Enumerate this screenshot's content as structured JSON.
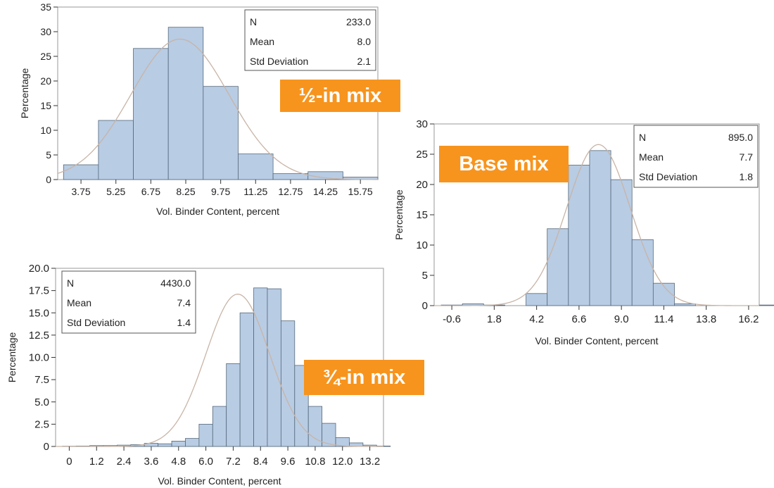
{
  "colors": {
    "bar_fill": "#b8cce4",
    "bar_stroke": "#55687a",
    "curve": "#c8b4a6",
    "tag_bg": "#f7941d",
    "tag_text": "#ffffff"
  },
  "tags": {
    "half": "½-in mix",
    "base": "Base mix",
    "three_quarter": "¾-in mix"
  },
  "chart_data": [
    {
      "id": "half",
      "type": "bar",
      "xlabel": "Vol. Binder Content, percent",
      "ylabel": "Percentage",
      "ylim": [
        0,
        35
      ],
      "yticks": [
        0,
        5,
        10,
        15,
        20,
        25,
        30,
        35
      ],
      "ytick_labels": [
        "0",
        "5",
        "10",
        "15",
        "20",
        "25",
        "30",
        "35"
      ],
      "xrange": [
        2.75,
        16.5
      ],
      "xticks": [
        3.75,
        5.25,
        6.75,
        8.25,
        9.75,
        11.25,
        12.75,
        14.25,
        15.75
      ],
      "xtick_labels": [
        "3.75",
        "5.25",
        "6.75",
        "8.25",
        "9.75",
        "11.25",
        "12.75",
        "14.25",
        "15.75"
      ],
      "bin_width": 1.5,
      "values": [
        3.0,
        12.0,
        26.6,
        30.9,
        18.9,
        5.2,
        1.2,
        1.6,
        0.5
      ],
      "stats": [
        {
          "label": "N",
          "value": "233.0"
        },
        {
          "label": "Mean",
          "value": "8.0"
        },
        {
          "label": "Std Deviation",
          "value": "2.1"
        }
      ],
      "normal_fit": {
        "mean": 8.0,
        "sd": 2.1
      }
    },
    {
      "id": "base",
      "type": "bar",
      "xlabel": "Vol. Binder Content, percent",
      "ylabel": "Percentage",
      "ylim": [
        0,
        30
      ],
      "yticks": [
        0,
        5,
        10,
        15,
        20,
        25,
        30
      ],
      "ytick_labels": [
        "0",
        "5",
        "10",
        "15",
        "20",
        "25",
        "30"
      ],
      "xrange": [
        -1.6,
        16.8
      ],
      "xticks": [
        -0.6,
        1.8,
        4.2,
        6.6,
        9.0,
        11.4,
        13.8,
        16.2
      ],
      "xtick_labels": [
        "-0.6",
        "1.8",
        "4.2",
        "6.6",
        "9.0",
        "11.4",
        "13.8",
        "16.2"
      ],
      "bin_width": 1.2,
      "values": [
        0.1,
        0.3,
        0.1,
        0,
        2.0,
        12.7,
        23.2,
        25.6,
        20.8,
        10.9,
        3.7,
        0.3,
        0,
        0,
        0,
        0.1
      ],
      "stats": [
        {
          "label": "N",
          "value": "895.0"
        },
        {
          "label": "Mean",
          "value": "7.7"
        },
        {
          "label": "Std Deviation",
          "value": "1.8"
        }
      ],
      "normal_fit": {
        "mean": 7.7,
        "sd": 1.8
      }
    },
    {
      "id": "three_quarter",
      "type": "bar",
      "xlabel": "Vol. Binder Content, percent",
      "ylabel": "Percentage",
      "ylim": [
        0,
        20
      ],
      "yticks": [
        0,
        2.5,
        5,
        7.5,
        10,
        12.5,
        15,
        17.5,
        20
      ],
      "ytick_labels": [
        "0",
        "2.5",
        "5.0",
        "7.5",
        "10.0",
        "12.5",
        "15.0",
        "17.5",
        "20.0"
      ],
      "xrange": [
        -0.6,
        13.8
      ],
      "xticks": [
        0,
        1.2,
        2.4,
        3.6,
        4.8,
        6.0,
        7.2,
        8.4,
        9.6,
        10.8,
        12.0,
        13.2
      ],
      "xtick_labels": [
        "0",
        "1.2",
        "2.4",
        "3.6",
        "4.8",
        "6.0",
        "7.2",
        "8.4",
        "9.6",
        "10.8",
        "12.0",
        "13.2"
      ],
      "bin_width": 0.6,
      "values": [
        0.03,
        0.05,
        0.1,
        0.1,
        0.15,
        0.2,
        0.35,
        0.3,
        0.6,
        0.9,
        2.5,
        4.5,
        9.3,
        15.0,
        17.8,
        17.7,
        14.1,
        9.1,
        4.5,
        2.6,
        1.0,
        0.4,
        0.15,
        0.05
      ],
      "stats": [
        {
          "label": "N",
          "value": "4430.0"
        },
        {
          "label": "Mean",
          "value": "7.4"
        },
        {
          "label": "Std Deviation",
          "value": "1.4"
        }
      ],
      "normal_fit": {
        "mean": 7.4,
        "sd": 1.4
      }
    }
  ]
}
